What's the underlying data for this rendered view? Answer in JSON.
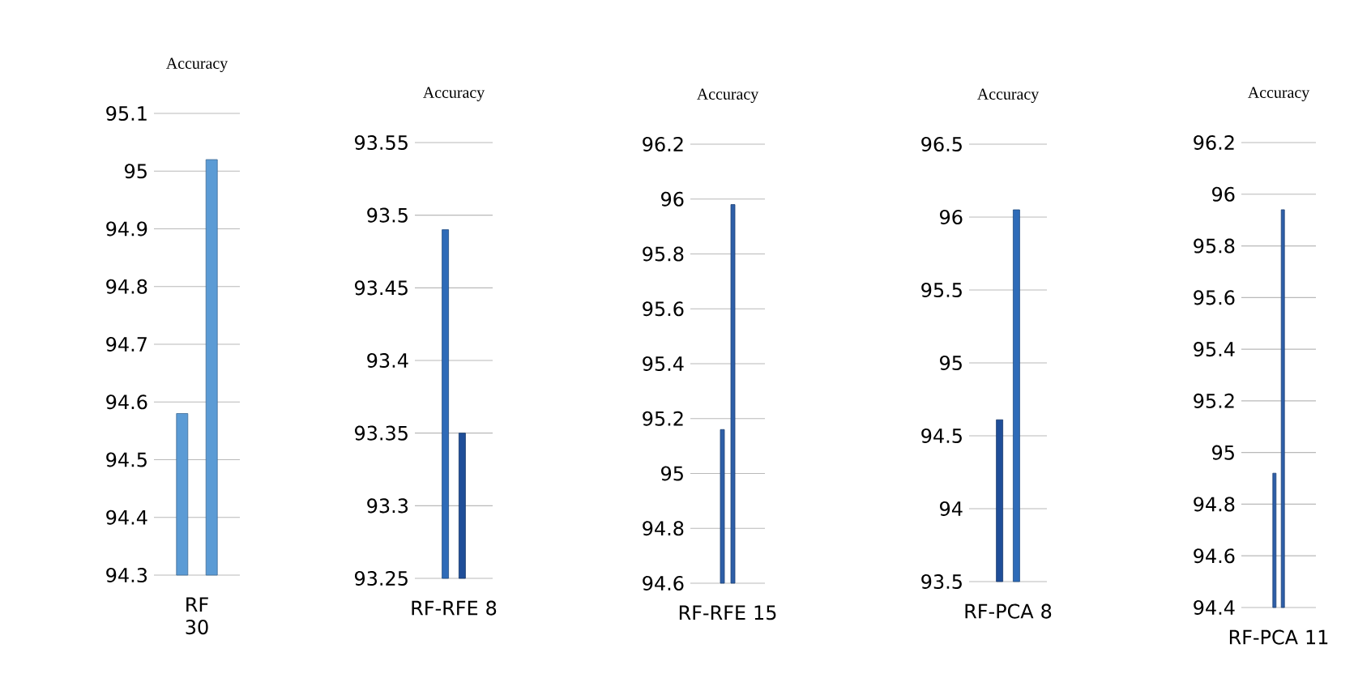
{
  "chart_data": [
    {
      "type": "bar",
      "title": "Accuracy",
      "categories": [
        "RF 30"
      ],
      "series": [
        {
          "color": "#5b9bd5",
          "values": [
            94.58
          ]
        },
        {
          "color": "#5b9bd5",
          "values": [
            95.02
          ]
        }
      ],
      "ylim": [
        94.3,
        95.1
      ],
      "yticks": [
        94.3,
        94.4,
        94.5,
        94.6,
        94.7,
        94.8,
        94.9,
        95,
        95.1
      ],
      "grid": "y"
    },
    {
      "type": "bar",
      "title": "Accuracy",
      "categories": [
        "RF-RFE 8"
      ],
      "series": [
        {
          "color": "#2e6bb8",
          "values": [
            93.49
          ]
        },
        {
          "color": "#1f4e99",
          "values": [
            93.35
          ]
        }
      ],
      "ylim": [
        93.25,
        93.55
      ],
      "yticks": [
        93.25,
        93.3,
        93.35,
        93.4,
        93.45,
        93.5,
        93.55
      ],
      "grid": "y"
    },
    {
      "type": "bar",
      "title": "Accuracy",
      "categories": [
        "RF-RFE 15"
      ],
      "series": [
        {
          "color": "#2e5fa8",
          "values": [
            95.16
          ]
        },
        {
          "color": "#2e5fa8",
          "values": [
            95.98
          ]
        }
      ],
      "ylim": [
        94.6,
        96.2
      ],
      "yticks": [
        94.6,
        94.8,
        95,
        95.2,
        95.4,
        95.6,
        95.8,
        96,
        96.2
      ],
      "grid": "y"
    },
    {
      "type": "bar",
      "title": "Accuracy",
      "categories": [
        "RF-PCA 8"
      ],
      "series": [
        {
          "color": "#1f4e99",
          "values": [
            94.61
          ]
        },
        {
          "color": "#2e6bb8",
          "values": [
            96.05
          ]
        }
      ],
      "ylim": [
        93.5,
        96.5
      ],
      "yticks": [
        93.5,
        94,
        94.5,
        95,
        95.5,
        96,
        96.5
      ],
      "grid": "y"
    },
    {
      "type": "bar",
      "title": "Accuracy",
      "categories": [
        "RF-PCA 11"
      ],
      "series": [
        {
          "color": "#2e5fa8",
          "values": [
            94.92
          ]
        },
        {
          "color": "#2e5fa8",
          "values": [
            95.94
          ]
        }
      ],
      "ylim": [
        94.4,
        96.2
      ],
      "yticks": [
        94.4,
        94.6,
        94.8,
        95,
        95.2,
        95.4,
        95.6,
        95.8,
        96,
        96.2
      ],
      "grid": "y"
    }
  ]
}
